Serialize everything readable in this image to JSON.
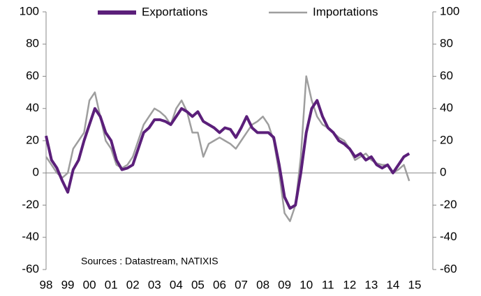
{
  "chart_data": {
    "type": "line",
    "annotation": "Sources : Datastream, NATIXIS",
    "legend": "top",
    "categories": [
      "98",
      null,
      null,
      null,
      "99",
      null,
      null,
      null,
      "00",
      null,
      null,
      null,
      "01",
      null,
      null,
      null,
      "02",
      null,
      null,
      null,
      "03",
      null,
      null,
      null,
      "04",
      null,
      null,
      null,
      "05",
      null,
      null,
      null,
      "06",
      null,
      null,
      null,
      "07",
      null,
      null,
      null,
      "08",
      null,
      null,
      null,
      "09",
      null,
      null,
      null,
      "10",
      null,
      null,
      null,
      "11",
      null,
      null,
      null,
      "12",
      null,
      null,
      null,
      "13",
      null,
      null,
      null,
      "14",
      null,
      null,
      null,
      "15"
    ],
    "series": [
      {
        "name": "Exportations",
        "color": "#5b1f7a",
        "values": [
          23,
          8,
          3,
          -5,
          -12,
          2,
          8,
          20,
          30,
          40,
          35,
          25,
          20,
          8,
          2,
          3,
          5,
          15,
          25,
          28,
          33,
          33,
          32,
          30,
          35,
          40,
          38,
          35,
          38,
          32,
          30,
          28,
          25,
          28,
          27,
          22,
          28,
          35,
          28,
          25,
          25,
          25,
          22,
          5,
          -15,
          -22,
          -20,
          0,
          25,
          40,
          45,
          35,
          28,
          25,
          20,
          18,
          15,
          10,
          12,
          8,
          10,
          5,
          3,
          5,
          0,
          5,
          10,
          12,
          null
        ]
      },
      {
        "name": "Importations",
        "color": "#9e9e9e",
        "values": [
          10,
          5,
          0,
          -3,
          0,
          15,
          20,
          25,
          45,
          50,
          35,
          20,
          15,
          5,
          3,
          5,
          10,
          20,
          30,
          35,
          40,
          38,
          35,
          30,
          40,
          45,
          38,
          25,
          25,
          10,
          18,
          20,
          22,
          20,
          18,
          15,
          20,
          25,
          30,
          32,
          35,
          30,
          20,
          0,
          -25,
          -30,
          -20,
          10,
          60,
          45,
          35,
          30,
          28,
          25,
          22,
          20,
          15,
          8,
          10,
          12,
          8,
          6,
          5,
          5,
          0,
          2,
          5,
          -5,
          null
        ]
      }
    ],
    "ylim": [
      -60,
      100
    ],
    "yticks": [
      -60,
      -40,
      -20,
      0,
      20,
      40,
      60,
      80,
      100
    ],
    "y2lim": [
      -60,
      100
    ],
    "y2ticks": [
      -60,
      -40,
      -20,
      0,
      20,
      40,
      60,
      80,
      100
    ]
  }
}
